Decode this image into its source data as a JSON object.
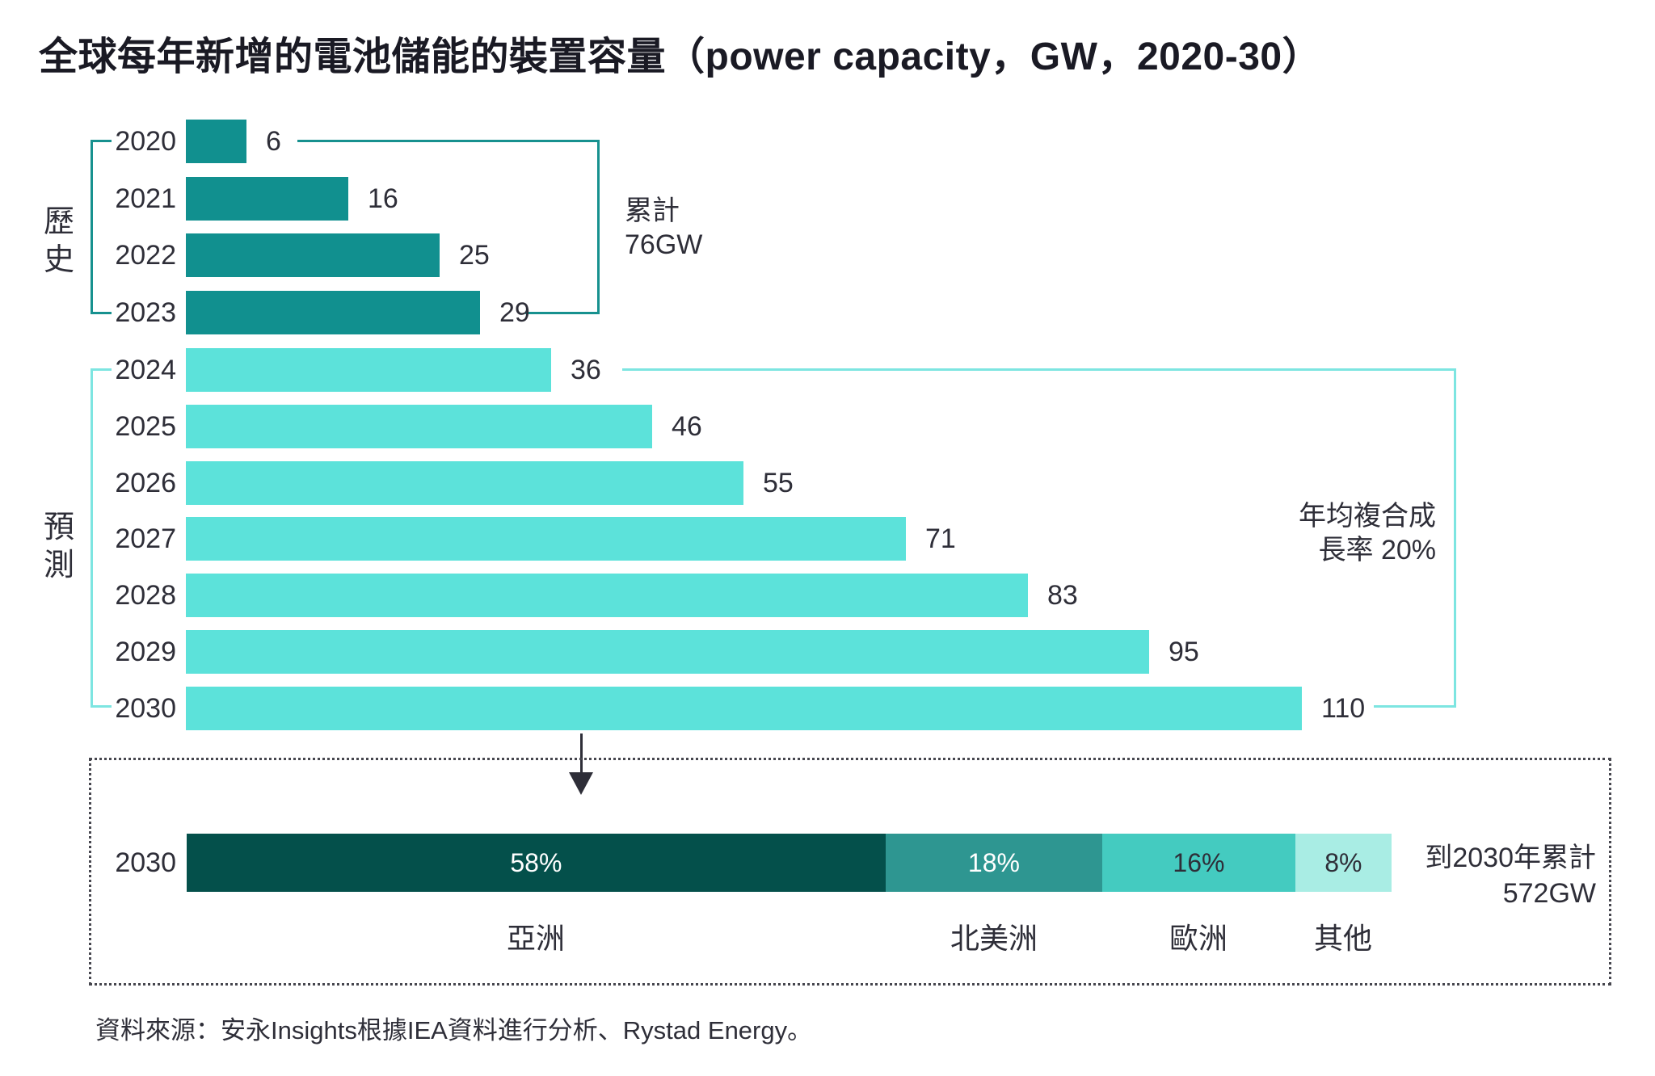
{
  "title": "全球每年新增的電池儲能的裝置容量（power capacity，GW，2020-30）",
  "source": "資料來源：安永Insights根據IEA資料進行分析、Rystad Energy。",
  "colors": {
    "historical_bar": "#11908f",
    "forecast_bar": "#5ce2da",
    "historical_bracket": "#17918f",
    "forecast_bracket": "#7de5e1",
    "arrow": "#2e2e38",
    "dotted_border": "#46464e",
    "text_dark": "#2e2e38",
    "title_text": "#1a1a24"
  },
  "chart_data": {
    "type": "bar",
    "orientation": "horizontal",
    "unit": "GW",
    "xlim": [
      0,
      115
    ],
    "grid": false,
    "legend": false,
    "groups": [
      {
        "name": "歷史",
        "years": [
          "2020",
          "2021",
          "2022",
          "2023"
        ],
        "values": [
          6,
          16,
          25,
          29
        ],
        "bar_color": "#11908f",
        "annotation": {
          "line1": "累計",
          "line2": "76GW"
        }
      },
      {
        "name": "預測",
        "years": [
          "2024",
          "2025",
          "2026",
          "2027",
          "2028",
          "2029",
          "2030"
        ],
        "values": [
          36,
          46,
          55,
          71,
          83,
          95,
          110
        ],
        "bar_color": "#5ce2da",
        "annotation": {
          "line1": "年均複合成",
          "line2": "長率 20%"
        }
      }
    ],
    "breakdown_2030": {
      "year": "2030",
      "total_note": {
        "line1": "到2030年累計",
        "line2": "572GW"
      },
      "segments": [
        {
          "region": "亞洲",
          "pct": 58,
          "label": "58%",
          "color": "#04504b",
          "text_color": "#ffffff"
        },
        {
          "region": "北美洲",
          "pct": 18,
          "label": "18%",
          "color": "#2e9691",
          "text_color": "#ffffff"
        },
        {
          "region": "歐洲",
          "pct": 16,
          "label": "16%",
          "color": "#44cbc0",
          "text_color": "#2e2e38"
        },
        {
          "region": "其他",
          "pct": 8,
          "label": "8%",
          "color": "#a9ede4",
          "text_color": "#2e2e38"
        }
      ]
    }
  }
}
